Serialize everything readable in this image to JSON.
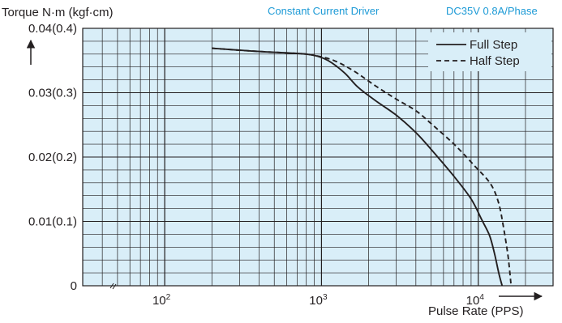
{
  "header": {
    "driver_label": "Constant Current Driver",
    "spec_label": "DC35V 0.8A/Phase"
  },
  "colors": {
    "plot_background": "#d9eef8",
    "grid": "#231f20",
    "curve": "#231f20",
    "header_text": "#1c9ad6"
  },
  "chart_data": {
    "type": "line",
    "ylabel": "Torque N·m (kgf·cm)",
    "xlabel": "Pulse Rate (PPS)",
    "x_scale": "log",
    "xlim": [
      30,
      30000
    ],
    "ylim": [
      0,
      0.04
    ],
    "grid": true,
    "legend_position": "top-right",
    "x_ticks": [
      {
        "value": 100,
        "base": "10",
        "exp": "2"
      },
      {
        "value": 1000,
        "base": "10",
        "exp": "3"
      },
      {
        "value": 10000,
        "base": "10",
        "exp": "4"
      }
    ],
    "y_ticks": [
      {
        "value": 0,
        "label": "0"
      },
      {
        "value": 0.01,
        "label": "0.01(0.1)"
      },
      {
        "value": 0.02,
        "label": "0.02(0.2)"
      },
      {
        "value": 0.03,
        "label": "0.03(0.3)"
      },
      {
        "value": 0.04,
        "label": "0.04(0.4)"
      }
    ],
    "series": [
      {
        "name": "Full Step",
        "style": "solid",
        "points": [
          [
            200,
            0.0369
          ],
          [
            400,
            0.0364
          ],
          [
            700,
            0.0361
          ],
          [
            900,
            0.0358
          ],
          [
            1100,
            0.035
          ],
          [
            1400,
            0.0331
          ],
          [
            1700,
            0.0309
          ],
          [
            2200,
            0.0288
          ],
          [
            3000,
            0.0265
          ],
          [
            4000,
            0.0238
          ],
          [
            5000,
            0.0212
          ],
          [
            7000,
            0.017
          ],
          [
            9000,
            0.0135
          ],
          [
            10500,
            0.0103
          ],
          [
            11800,
            0.0078
          ],
          [
            12700,
            0.005
          ],
          [
            13500,
            0.002
          ],
          [
            14200,
            0.0
          ]
        ]
      },
      {
        "name": "Half Step",
        "style": "dashed",
        "points": [
          [
            200,
            0.0369
          ],
          [
            400,
            0.0364
          ],
          [
            700,
            0.0361
          ],
          [
            900,
            0.0358
          ],
          [
            1200,
            0.035
          ],
          [
            1600,
            0.0334
          ],
          [
            2200,
            0.0311
          ],
          [
            3000,
            0.029
          ],
          [
            4000,
            0.0272
          ],
          [
            5000,
            0.0252
          ],
          [
            7000,
            0.022
          ],
          [
            9500,
            0.0186
          ],
          [
            12000,
            0.0158
          ],
          [
            13500,
            0.0128
          ],
          [
            14500,
            0.009
          ],
          [
            15500,
            0.0045
          ],
          [
            16200,
            0.0
          ]
        ]
      }
    ]
  }
}
